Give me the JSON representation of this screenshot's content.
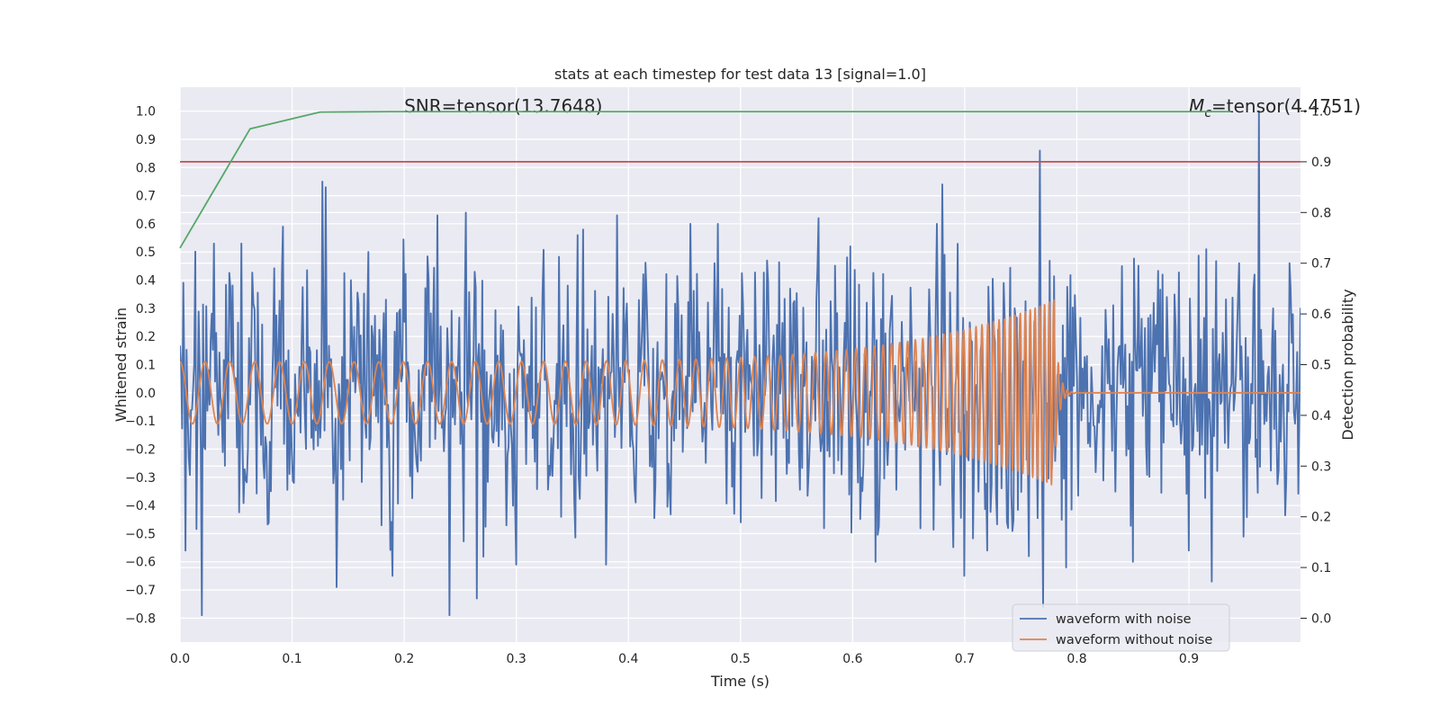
{
  "chart_data": {
    "type": "line",
    "title": "stats at each timestep for test data 13 [signal=1.0]",
    "xlabel": "Time (s)",
    "ylabel": "Whitened strain",
    "ylabel_right": "Detection probability",
    "xlim": [
      0.0,
      0.9995
    ],
    "ylim": [
      -0.885,
      1.085
    ],
    "ylim_right": [
      -0.047,
      1.047
    ],
    "x_ticks": [
      0.0,
      0.1,
      0.2,
      0.3,
      0.4,
      0.5,
      0.6,
      0.7,
      0.8,
      0.9
    ],
    "x_tick_labels": [
      "0.0",
      "0.1",
      "0.2",
      "0.3",
      "0.4",
      "0.5",
      "0.6",
      "0.7",
      "0.8",
      "0.9"
    ],
    "y_ticks": [
      1.0,
      0.9,
      0.8,
      0.7,
      0.6,
      0.5,
      0.4,
      0.3,
      0.2,
      0.1,
      0.0,
      -0.1,
      -0.2,
      -0.3,
      -0.4,
      -0.5,
      -0.6,
      -0.7,
      -0.8
    ],
    "y_tick_labels": [
      "1.0",
      "0.9",
      "0.8",
      "0.7",
      "0.6",
      "0.5",
      "0.4",
      "0.3",
      "0.2",
      "0.1",
      "0.0",
      "−0.1",
      "−0.2",
      "−0.3",
      "−0.4",
      "−0.5",
      "−0.6",
      "−0.7",
      "−0.8"
    ],
    "y_ticks_right": [
      1.0,
      0.9,
      0.8,
      0.7,
      0.6,
      0.5,
      0.4,
      0.3,
      0.2,
      0.1,
      0.0
    ],
    "y_tick_labels_right": [
      "1.0",
      "0.9",
      "0.8",
      "0.7",
      "0.6",
      "0.5",
      "0.4",
      "0.3",
      "0.2",
      "0.1",
      "0.0"
    ],
    "grid": true,
    "legend_position": "lower-right",
    "annotations": {
      "snr": "SNR=tensor(13.7648)",
      "mc_symbol": "M",
      "mc_subscript": "c",
      "mc_value": "=tensor(4.4751)"
    },
    "colors": {
      "background": "#eaeaf2",
      "grid": "#ffffff",
      "noisy": "#4c72b0",
      "clean": "#dd8452",
      "probability": "#55a868",
      "threshold": "#c44e52"
    },
    "threshold_line": {
      "axis": "right",
      "y": 0.9
    },
    "probability_series": {
      "axis": "right",
      "x": [
        0.0,
        0.0625,
        0.125,
        0.1875,
        0.25,
        0.3125,
        0.375,
        0.4375,
        0.5,
        0.5625,
        0.625,
        0.6875,
        0.75,
        0.8125,
        0.875,
        0.9375
      ],
      "y": [
        0.73,
        0.965,
        0.998,
        0.999,
        0.999,
        0.999,
        0.999,
        0.999,
        0.999,
        0.999,
        0.999,
        0.999,
        0.999,
        0.999,
        0.999,
        0.999
      ]
    },
    "series": [
      {
        "name": "waveform with noise",
        "axis": "left",
        "style": "noisy-waveform",
        "peaks": [
          [
            0.005,
            -0.56
          ],
          [
            0.02,
            -0.79
          ],
          [
            0.03,
            0.53
          ],
          [
            0.055,
            0.53
          ],
          [
            0.092,
            0.59
          ],
          [
            0.127,
            0.75
          ],
          [
            0.13,
            0.73
          ],
          [
            0.14,
            -0.69
          ],
          [
            0.168,
            0.5
          ],
          [
            0.19,
            -0.65
          ],
          [
            0.23,
            0.63
          ],
          [
            0.24,
            -0.79
          ],
          [
            0.255,
            0.64
          ],
          [
            0.265,
            -0.73
          ],
          [
            0.3,
            -0.61
          ],
          [
            0.355,
            0.56
          ],
          [
            0.36,
            0.58
          ],
          [
            0.38,
            -0.61
          ],
          [
            0.39,
            0.63
          ],
          [
            0.455,
            0.6
          ],
          [
            0.48,
            0.6
          ],
          [
            0.5,
            -0.46
          ],
          [
            0.57,
            0.62
          ],
          [
            0.598,
            0.52
          ],
          [
            0.62,
            -0.6
          ],
          [
            0.675,
            0.6
          ],
          [
            0.68,
            0.74
          ],
          [
            0.7,
            -0.65
          ],
          [
            0.72,
            -0.56
          ],
          [
            0.735,
            0.39
          ],
          [
            0.757,
            -0.58
          ],
          [
            0.767,
            0.86
          ],
          [
            0.77,
            -0.76
          ],
          [
            0.79,
            -0.62
          ],
          [
            0.84,
            0.45
          ],
          [
            0.85,
            -0.6
          ],
          [
            0.88,
            0.34
          ],
          [
            0.9,
            -0.56
          ],
          [
            0.92,
            -0.67
          ],
          [
            0.945,
            0.46
          ],
          [
            0.958,
            0.42
          ],
          [
            0.962,
            1.0
          ],
          [
            0.975,
            0.3
          ],
          [
            0.99,
            0.46
          ]
        ]
      },
      {
        "name": "waveform without noise",
        "axis": "left",
        "style": "chirp",
        "merger_time": 0.7795,
        "amplitude_start": 0.11,
        "amplitude_peak": 0.33,
        "frequency_start": 45,
        "frequency_end": 250
      }
    ],
    "legend": [
      "waveform with noise",
      "waveform without noise"
    ]
  }
}
